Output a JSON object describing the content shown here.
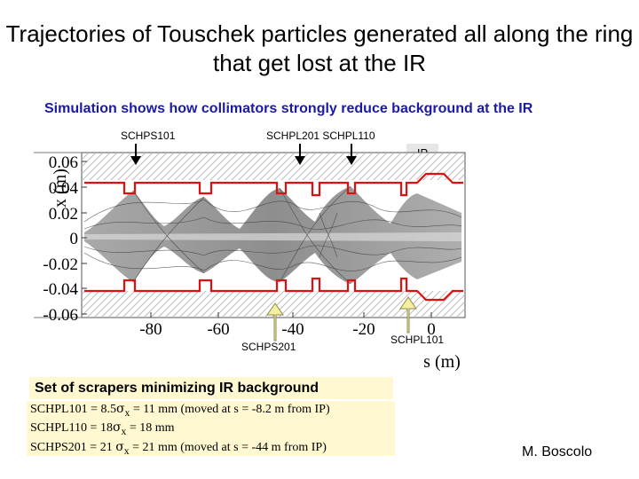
{
  "title": "Trajectories of Touschek particles generated all along the ring that get lost at the IR",
  "subtitle": "Simulation shows how collimators strongly reduce background at the IR",
  "top_labels": {
    "schps101": "SCHPS101",
    "schpl201_schpl110": "SCHPL201 SCHPL110",
    "ip": "IP"
  },
  "bottom_labels": {
    "schps201": "SCHPS201",
    "schpl101": "SCHPL101"
  },
  "plot": {
    "ylabel": "x (m)",
    "xlabel": "s (m)",
    "yticks": [
      "0.06",
      "0.04",
      "0.02",
      "0",
      "-0.02",
      "-0.04",
      "-0.06"
    ],
    "xticks": [
      "-80",
      "-60",
      "-40",
      "-20",
      "0"
    ],
    "aperture_color": "#e01010",
    "arrow_color": "#f5efa0"
  },
  "scrapers": {
    "heading": "Set of scrapers minimizing IR background",
    "lines": [
      {
        "pre": "SCHPL101 = 8.5",
        "sigma": "σ",
        "sub": "x",
        "post": "= 11 mm  (moved at s = -8.2 m from IP)"
      },
      {
        "pre": "SCHPL110 = 18",
        "sigma": "σ",
        "sub": "x",
        "post": "=  18 mm"
      },
      {
        "pre": "SCHPS201 = 21 ",
        "sigma": "σ",
        "sub": "x",
        "post": "= 21 mm  (moved at s = -44 m from IP)"
      }
    ]
  },
  "author": "M. Boscolo"
}
